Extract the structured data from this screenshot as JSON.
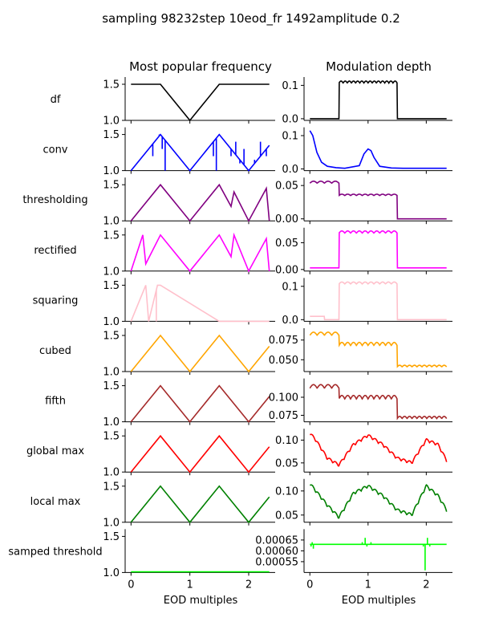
{
  "figure": {
    "title": "sampling 98232step 10eod_fr 1492amplitude 0.2",
    "col_titles": [
      "Most popular frequency",
      "Modulation depth"
    ]
  },
  "chart_data": {
    "type": "line",
    "xlabel": "EOD multiples",
    "xlim": [
      -0.1,
      2.45
    ],
    "xticks": [
      "0",
      "1",
      "2"
    ],
    "rows": [
      {
        "label": "df",
        "color": "#000000",
        "left": {
          "ylim": [
            1.0,
            1.6
          ],
          "yticks": [
            "1.0",
            "1.5"
          ],
          "x": [
            0,
            0.5,
            1.0,
            1.5,
            2.35
          ],
          "y": [
            1.5,
            1.5,
            1.0,
            1.5,
            1.5
          ]
        },
        "right": {
          "ylim": [
            -0.005,
            0.125
          ],
          "yticks": [
            "0.0",
            "0.1"
          ],
          "x": [
            0,
            0.5,
            0.5,
            1.5,
            1.5,
            2.35
          ],
          "y": [
            0,
            0,
            0.11,
            0.11,
            0,
            0
          ],
          "osc": [
            0.5,
            1.5,
            0.006,
            14
          ]
        }
      },
      {
        "label": "conv",
        "color": "#0000ff",
        "left": {
          "ylim": [
            1.0,
            1.6
          ],
          "yticks": [
            "1.0",
            "1.5"
          ],
          "x": [
            0,
            0.5,
            1.0,
            1.5,
            2.0,
            2.35
          ],
          "y": [
            1.0,
            1.5,
            1.0,
            1.5,
            1.0,
            1.35
          ],
          "spikes": [
            [
              0.37,
              1.2
            ],
            [
              0.48,
              1.5
            ],
            [
              0.53,
              1.3
            ],
            [
              0.58,
              1.0
            ],
            [
              1.4,
              1.2
            ],
            [
              1.45,
              1.0
            ],
            [
              1.6,
              1.4
            ],
            [
              1.7,
              1.2
            ],
            [
              1.78,
              1.4
            ],
            [
              1.85,
              1.1
            ],
            [
              1.92,
              1.3
            ],
            [
              2.1,
              1.15
            ],
            [
              2.2,
              1.4
            ],
            [
              2.3,
              1.2
            ]
          ]
        },
        "right": {
          "ylim": [
            -0.005,
            0.125
          ],
          "yticks": [
            "0.0",
            "0.1"
          ],
          "x": [
            0,
            0.05,
            0.12,
            0.2,
            0.3,
            0.45,
            0.6,
            0.85,
            0.93,
            1.0,
            1.05,
            1.1,
            1.2,
            1.4,
            1.6,
            2.35
          ],
          "y": [
            0.115,
            0.1,
            0.05,
            0.02,
            0.008,
            0.004,
            0.002,
            0.01,
            0.045,
            0.06,
            0.055,
            0.035,
            0.008,
            0.003,
            0.002,
            0.002
          ]
        }
      },
      {
        "label": "thresholding",
        "color": "#800080",
        "left": {
          "ylim": [
            1.0,
            1.6
          ],
          "yticks": [
            "1.0",
            "1.5"
          ],
          "x": [
            0,
            0.5,
            1.0,
            1.5,
            1.7,
            1.75,
            2.0,
            2.3,
            2.35
          ],
          "y": [
            1.0,
            1.5,
            1.0,
            1.5,
            1.2,
            1.4,
            1.0,
            1.45,
            1.0
          ]
        },
        "right": {
          "ylim": [
            -0.003,
            0.062
          ],
          "yticks": [
            "0.00",
            "0.05"
          ],
          "x": [
            0,
            0.5,
            0.5,
            1.5,
            1.5,
            2.35
          ],
          "y": [
            0.055,
            0.055,
            0.036,
            0.036,
            0.0,
            0.0
          ],
          "osc": [
            0,
            0.5,
            0.003,
            4,
            0.5,
            1.5,
            0.002,
            10
          ]
        }
      },
      {
        "label": "rectified",
        "color": "#ff00ff",
        "left": {
          "ylim": [
            1.0,
            1.6
          ],
          "yticks": [
            "1.0",
            "1.5"
          ],
          "x": [
            0,
            0.2,
            0.25,
            0.5,
            1.0,
            1.5,
            1.7,
            1.75,
            2.0,
            2.3,
            2.35
          ],
          "y": [
            1.0,
            1.5,
            1.1,
            1.5,
            1.0,
            1.5,
            1.2,
            1.5,
            1.0,
            1.45,
            1.0
          ]
        },
        "right": {
          "ylim": [
            -0.003,
            0.078
          ],
          "yticks": [
            "0.00",
            "0.05"
          ],
          "x": [
            0,
            0.5,
            0.5,
            1.5,
            1.5,
            2.35
          ],
          "y": [
            0.003,
            0.003,
            0.07,
            0.07,
            0.003,
            0.003
          ],
          "osc": [
            0.5,
            1.5,
            0.004,
            10
          ]
        }
      },
      {
        "label": "squaring",
        "color": "#ffc0cb",
        "left": {
          "ylim": [
            1.0,
            1.6
          ],
          "yticks": [
            "1.0",
            "1.5"
          ],
          "x": [
            0,
            0.25,
            0.3,
            0.45,
            0.5,
            1.5,
            1.5,
            2.35
          ],
          "y": [
            1.0,
            1.5,
            1.0,
            1.5,
            1.5,
            1.0,
            1.0,
            1.0
          ],
          "spikes": [
            [
              0.43,
              1.0
            ],
            [
              0.47,
              1.5
            ]
          ]
        },
        "right": {
          "ylim": [
            -0.005,
            0.125
          ],
          "yticks": [
            "0.0",
            "0.1"
          ],
          "x": [
            0,
            0.25,
            0.25,
            0.5,
            0.5,
            1.5,
            1.5,
            2.35
          ],
          "y": [
            0.01,
            0.01,
            0.0,
            0.0,
            0.11,
            0.11,
            0.0,
            0.0
          ],
          "osc": [
            0.5,
            1.5,
            0.006,
            10
          ]
        }
      },
      {
        "label": "cubed",
        "color": "#ffa500",
        "left": {
          "ylim": [
            1.0,
            1.6
          ],
          "yticks": [
            "1.0",
            "1.5"
          ],
          "x": [
            0,
            0.5,
            1.0,
            1.5,
            2.0,
            2.35
          ],
          "y": [
            1.0,
            1.5,
            1.0,
            1.5,
            1.0,
            1.35
          ]
        },
        "right": {
          "ylim": [
            0.035,
            0.09
          ],
          "yticks": [
            "0.050",
            "0.075"
          ],
          "x": [
            0,
            0.5,
            0.5,
            1.5,
            1.5,
            2.35
          ],
          "y": [
            0.083,
            0.083,
            0.07,
            0.07,
            0.042,
            0.042
          ],
          "osc": [
            0,
            0.5,
            0.004,
            4,
            0.5,
            1.5,
            0.004,
            10,
            1.5,
            2.35,
            0.002,
            10
          ]
        }
      },
      {
        "label": "fifth",
        "color": "#a52a2a",
        "left": {
          "ylim": [
            1.0,
            1.6
          ],
          "yticks": [
            "1.0",
            "1.5"
          ],
          "x": [
            0,
            0.5,
            1.0,
            1.5,
            2.0,
            2.35
          ],
          "y": [
            1.0,
            1.5,
            1.0,
            1.5,
            1.0,
            1.35
          ]
        },
        "right": {
          "ylim": [
            0.066,
            0.126
          ],
          "yticks": [
            "0.075",
            "0.100"
          ],
          "x": [
            0,
            0.5,
            0.5,
            1.5,
            1.5,
            2.35
          ],
          "y": [
            0.115,
            0.115,
            0.1,
            0.1,
            0.072,
            0.072
          ],
          "osc": [
            0,
            0.5,
            0.005,
            4,
            0.5,
            1.5,
            0.005,
            10,
            1.5,
            2.35,
            0.003,
            10
          ]
        }
      },
      {
        "label": "global max",
        "color": "#ff0000",
        "left": {
          "ylim": [
            1.0,
            1.6
          ],
          "yticks": [
            "1.0",
            "1.5"
          ],
          "x": [
            0,
            0.5,
            1.0,
            1.5,
            2.0,
            2.35
          ],
          "y": [
            1.0,
            1.5,
            1.0,
            1.5,
            1.0,
            1.35
          ]
        },
        "right": {
          "ylim": [
            0.03,
            0.125
          ],
          "yticks": [
            "0.05",
            "0.10"
          ],
          "x": [
            0,
            0.1,
            0.3,
            0.5,
            0.75,
            1.0,
            1.25,
            1.5,
            1.75,
            2.0,
            2.2,
            2.35
          ],
          "y": [
            0.115,
            0.1,
            0.06,
            0.045,
            0.09,
            0.11,
            0.09,
            0.06,
            0.05,
            0.1,
            0.09,
            0.055
          ],
          "osc": [
            0,
            2.35,
            0.006,
            24
          ]
        }
      },
      {
        "label": "local max",
        "color": "#008000",
        "left": {
          "ylim": [
            1.0,
            1.6
          ],
          "yticks": [
            "1.0",
            "1.5"
          ],
          "x": [
            0,
            0.5,
            1.0,
            1.5,
            2.0,
            2.35
          ],
          "y": [
            1.0,
            1.5,
            1.0,
            1.5,
            1.0,
            1.35
          ]
        },
        "right": {
          "ylim": [
            0.035,
            0.125
          ],
          "yticks": [
            "0.05",
            "0.10"
          ],
          "x": [
            0,
            0.1,
            0.3,
            0.5,
            0.75,
            1.0,
            1.25,
            1.5,
            1.75,
            2.0,
            2.2,
            2.35
          ],
          "y": [
            0.115,
            0.1,
            0.07,
            0.045,
            0.095,
            0.11,
            0.09,
            0.06,
            0.05,
            0.11,
            0.09,
            0.06
          ],
          "osc": [
            0,
            2.35,
            0.006,
            24
          ]
        }
      },
      {
        "label": "samped threshold",
        "color": "#00ff00",
        "left": {
          "ylim": [
            1.0,
            1.6
          ],
          "yticks": [
            "1.0",
            "1.5"
          ],
          "x": [
            0,
            2.35
          ],
          "y": [
            1.01,
            1.01
          ]
        },
        "right": {
          "ylim": [
            0.0005,
            0.0007
          ],
          "yticks": [
            "0.00055",
            "0.00060",
            "0.00065"
          ],
          "x": [
            0,
            2.35
          ],
          "y": [
            0.00063,
            0.00063
          ],
          "spikes": [
            [
              0.02,
              0.00062
            ],
            [
              0.04,
              0.00064
            ],
            [
              0.06,
              0.00061
            ],
            [
              0.9,
              0.00064
            ],
            [
              0.95,
              0.00066
            ],
            [
              0.98,
              0.00062
            ],
            [
              1.05,
              0.00064
            ],
            [
              1.95,
              0.00062
            ],
            [
              1.98,
              0.00051
            ],
            [
              2.02,
              0.00066
            ],
            [
              2.06,
              0.00062
            ]
          ]
        }
      }
    ]
  }
}
